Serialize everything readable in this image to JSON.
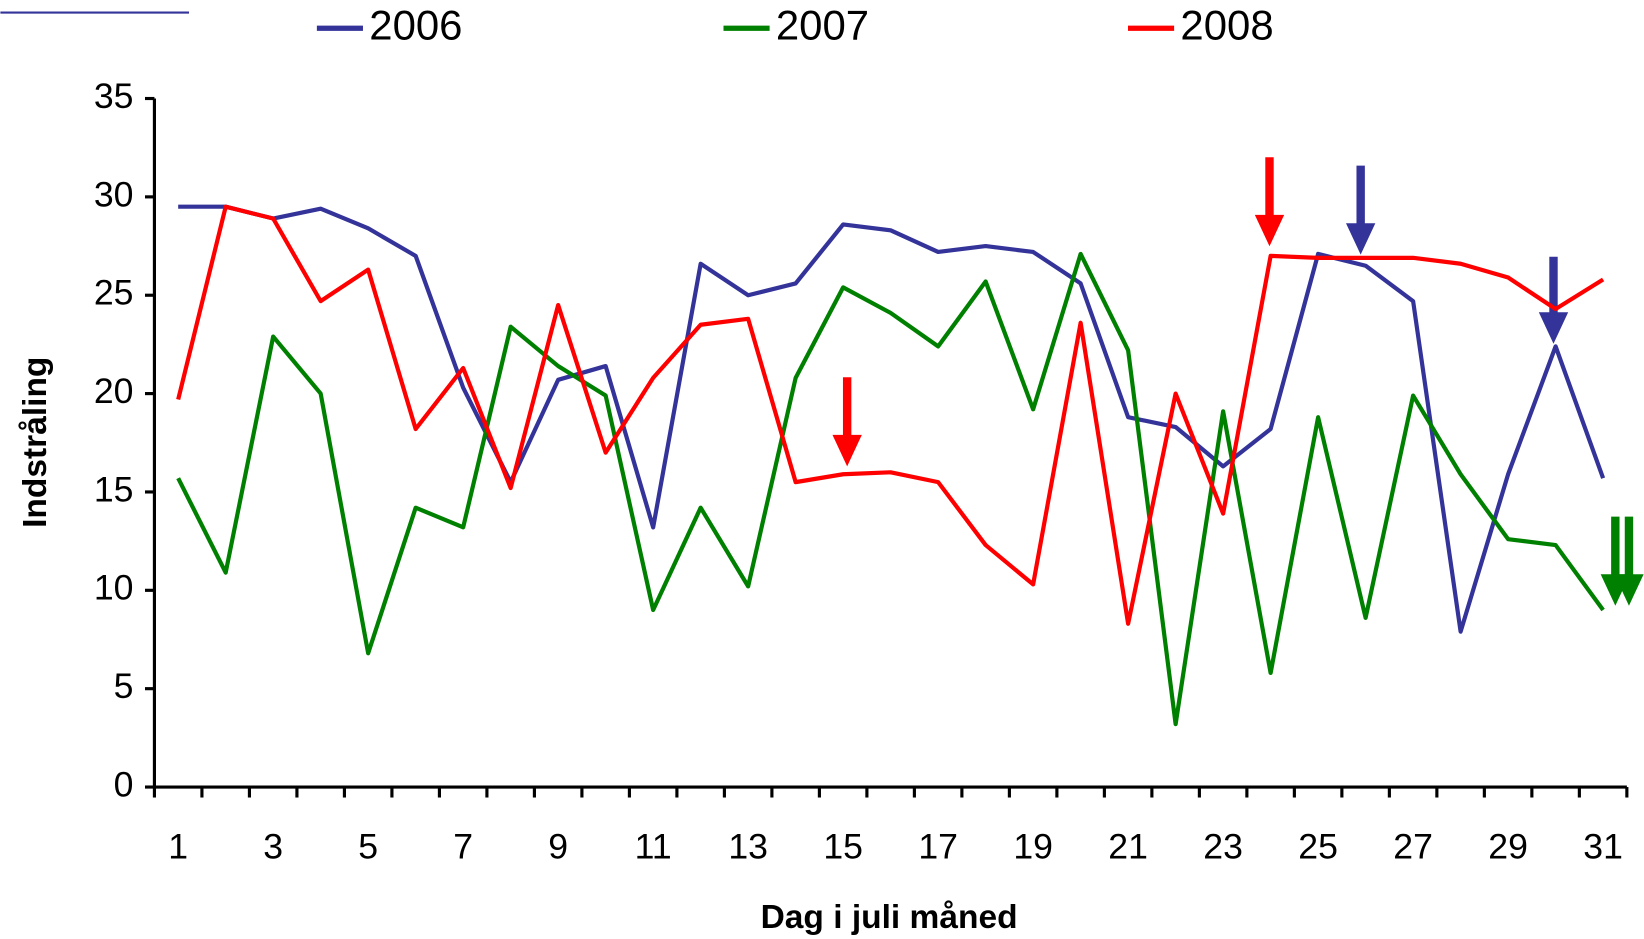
{
  "chart_data": {
    "type": "line",
    "xlabel": "Dag i juli måned",
    "ylabel": "Indstråling",
    "categories": [
      "1",
      null,
      "3",
      null,
      "5",
      null,
      "7",
      null,
      "9",
      null,
      "11",
      null,
      "13",
      null,
      "15",
      null,
      "17",
      null,
      "19",
      null,
      "21",
      null,
      "23",
      null,
      "25",
      null,
      "27",
      null,
      "29",
      null,
      "31"
    ],
    "ylim": [
      0,
      35
    ],
    "yticks": [
      0,
      5,
      10,
      15,
      20,
      25,
      30,
      35
    ],
    "legend": "top",
    "series": [
      {
        "name": "2006",
        "color": "#333399",
        "values": [
          29.5,
          29.5,
          28.9,
          29.4,
          28.4,
          27.0,
          20.3,
          15.5,
          20.7,
          21.4,
          13.2,
          26.6,
          25.0,
          25.6,
          28.6,
          28.3,
          27.2,
          27.5,
          27.2,
          25.6,
          18.8,
          18.3,
          16.3,
          18.2,
          27.1,
          26.5,
          24.7,
          7.9,
          15.9,
          22.4,
          15.7
        ]
      },
      {
        "name": "2007",
        "color": "#008000",
        "values": [
          15.7,
          10.9,
          22.9,
          20.0,
          6.8,
          14.2,
          13.2,
          23.4,
          21.4,
          19.9,
          9.0,
          14.2,
          10.2,
          20.8,
          25.4,
          24.1,
          22.4,
          25.7,
          19.2,
          27.1,
          22.2,
          3.2,
          19.1,
          5.8,
          18.8,
          8.6,
          19.9,
          15.9,
          12.6,
          12.3,
          9.0
        ]
      },
      {
        "name": "2008",
        "color": "#ff0000",
        "values": [
          19.7,
          29.5,
          28.9,
          24.7,
          26.3,
          18.2,
          21.3,
          15.2,
          24.5,
          17.0,
          20.8,
          23.5,
          23.8,
          15.5,
          15.9,
          16.0,
          15.5,
          12.3,
          10.3,
          23.6,
          8.3,
          20.0,
          13.9,
          27.0,
          26.9,
          26.9,
          26.9,
          26.6,
          25.9,
          24.3,
          25.8
        ]
      }
    ]
  }
}
